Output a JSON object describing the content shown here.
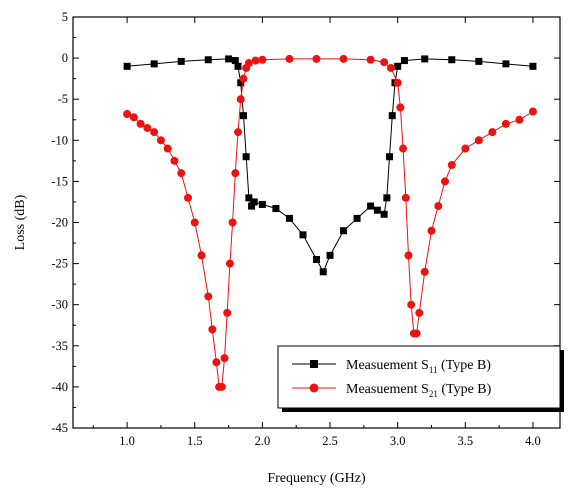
{
  "chart_data": {
    "type": "line",
    "xlabel": "Frequency (GHz)",
    "ylabel": "Loss (dB)",
    "xlim": [
      0.6,
      4.2
    ],
    "ylim": [
      -45,
      5
    ],
    "xticks": [
      "1.0",
      "1.5",
      "2.0",
      "2.5",
      "3.0",
      "3.5",
      "4.0"
    ],
    "yticks": [
      "5",
      "0",
      "-5",
      "-10",
      "-15",
      "-20",
      "-25",
      "-30",
      "-35",
      "-40",
      "-45"
    ],
    "grid": false,
    "legend_position": "bottom-right",
    "series": [
      {
        "name": "Measuement S11 (Type B)",
        "label_main": "Measuement S",
        "label_sub": "11",
        "label_tail": " (Type B)",
        "color": "#000000",
        "marker": "square",
        "x": [
          1.0,
          1.2,
          1.4,
          1.6,
          1.75,
          1.8,
          1.82,
          1.84,
          1.86,
          1.88,
          1.9,
          1.92,
          1.94,
          2.0,
          2.1,
          2.2,
          2.3,
          2.4,
          2.45,
          2.5,
          2.6,
          2.7,
          2.8,
          2.85,
          2.9,
          2.92,
          2.94,
          2.96,
          2.98,
          3.0,
          3.05,
          3.2,
          3.4,
          3.6,
          3.8,
          4.0
        ],
        "y": [
          -1.0,
          -0.7,
          -0.4,
          -0.2,
          -0.1,
          -0.3,
          -1.0,
          -3.0,
          -7.0,
          -12.0,
          -17.0,
          -18.0,
          -17.5,
          -17.8,
          -18.3,
          -19.5,
          -21.5,
          -24.5,
          -26.0,
          -24.0,
          -21.0,
          -19.5,
          -18.0,
          -18.5,
          -19.0,
          -17.0,
          -12.0,
          -7.0,
          -3.0,
          -1.0,
          -0.3,
          -0.1,
          -0.2,
          -0.4,
          -0.7,
          -1.0
        ]
      },
      {
        "name": "Measuement S21 (Type B)",
        "label_main": "Measuement S",
        "label_sub": "21",
        "label_tail": " (Type B)",
        "color": "#ee1111",
        "marker": "circle",
        "x": [
          1.0,
          1.05,
          1.1,
          1.15,
          1.2,
          1.25,
          1.3,
          1.35,
          1.4,
          1.45,
          1.5,
          1.55,
          1.6,
          1.63,
          1.66,
          1.68,
          1.7,
          1.72,
          1.74,
          1.76,
          1.78,
          1.8,
          1.82,
          1.84,
          1.86,
          1.88,
          1.9,
          1.95,
          2.0,
          2.2,
          2.4,
          2.6,
          2.8,
          2.9,
          2.95,
          3.0,
          3.02,
          3.04,
          3.06,
          3.08,
          3.1,
          3.12,
          3.14,
          3.16,
          3.2,
          3.25,
          3.3,
          3.35,
          3.4,
          3.5,
          3.6,
          3.7,
          3.8,
          3.9,
          4.0
        ],
        "y": [
          -6.8,
          -7.2,
          -8.0,
          -8.5,
          -9.0,
          -10.0,
          -11.0,
          -12.5,
          -14.0,
          -17.0,
          -20.0,
          -24.0,
          -29.0,
          -33.0,
          -37.0,
          -40.0,
          -40.0,
          -36.5,
          -31.0,
          -25.0,
          -20.0,
          -14.0,
          -9.0,
          -5.0,
          -2.5,
          -1.2,
          -0.6,
          -0.3,
          -0.2,
          -0.1,
          -0.1,
          -0.1,
          -0.2,
          -0.5,
          -1.2,
          -3.0,
          -6.0,
          -11.0,
          -17.0,
          -24.0,
          -30.0,
          -33.5,
          -33.5,
          -31.0,
          -26.0,
          -21.0,
          -18.0,
          -15.0,
          -13.0,
          -11.0,
          -10.0,
          -9.0,
          -8.0,
          -7.5,
          -6.5
        ]
      }
    ]
  }
}
